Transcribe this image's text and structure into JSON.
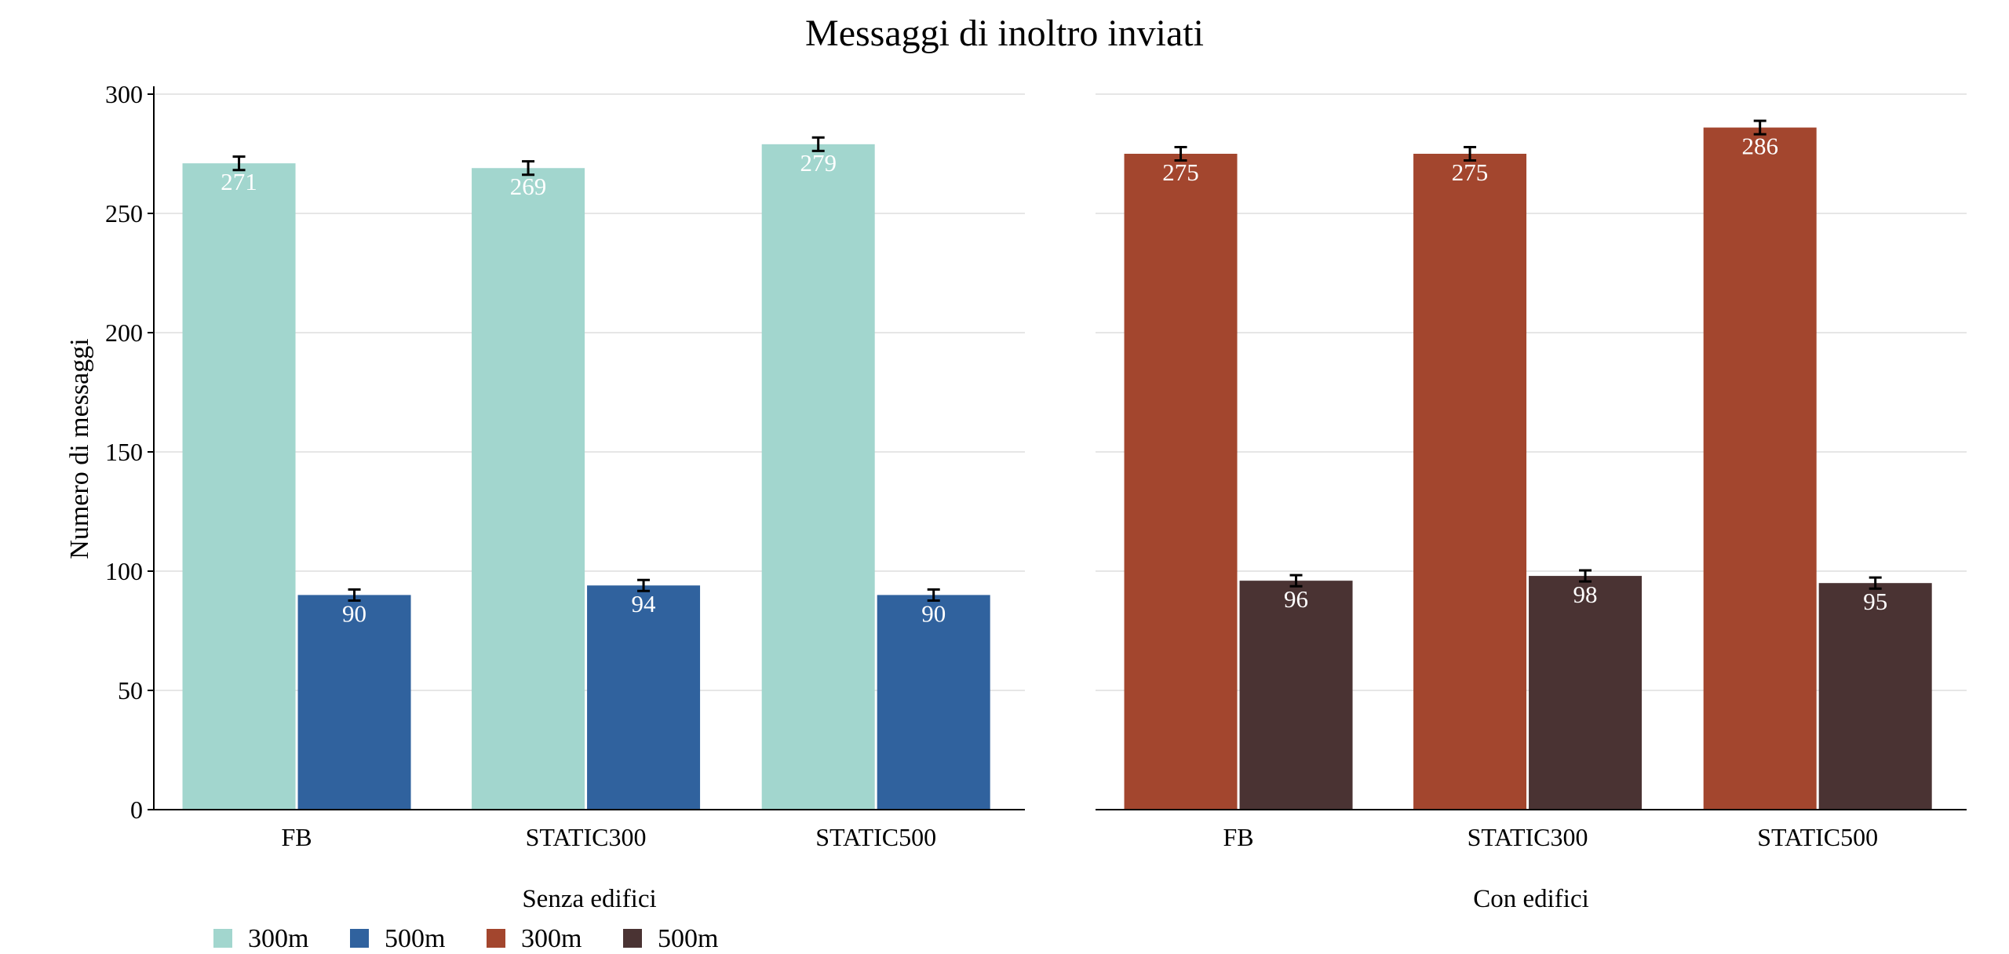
{
  "chart_data": {
    "type": "bar",
    "title": "Messaggi di inoltro inviati",
    "ylabel": "Numero di messaggi",
    "ylim": [
      0,
      300
    ],
    "yticks": [
      0,
      50,
      100,
      150,
      200,
      250,
      300
    ],
    "grid": true,
    "categories": [
      "FB",
      "STATIC300",
      "STATIC500"
    ],
    "panels": [
      {
        "label": "Senza edifici",
        "series": [
          {
            "name": "300m",
            "color": "#a2d6ce",
            "values": [
              271,
              269,
              279
            ],
            "errors": [
              1.5,
              1.5,
              1.5
            ]
          },
          {
            "name": "500m",
            "color": "#30629e",
            "values": [
              90,
              94,
              90
            ],
            "errors": [
              1.0,
              1.0,
              1.0
            ]
          }
        ]
      },
      {
        "label": "Con edifici",
        "series": [
          {
            "name": "300m",
            "color": "#a3462e",
            "values": [
              275,
              275,
              286
            ],
            "errors": [
              1.5,
              1.5,
              1.5
            ]
          },
          {
            "name": "500m",
            "color": "#4a3333",
            "values": [
              96,
              98,
              95
            ],
            "errors": [
              1.0,
              1.0,
              1.0
            ]
          }
        ]
      }
    ],
    "legend": {
      "placement": "bottom-left",
      "entries": [
        {
          "label": "300m",
          "color": "#a2d6ce"
        },
        {
          "label": "500m",
          "color": "#30629e"
        },
        {
          "label": "300m",
          "color": "#a3462e"
        },
        {
          "label": "500m",
          "color": "#4a3333"
        }
      ]
    }
  }
}
